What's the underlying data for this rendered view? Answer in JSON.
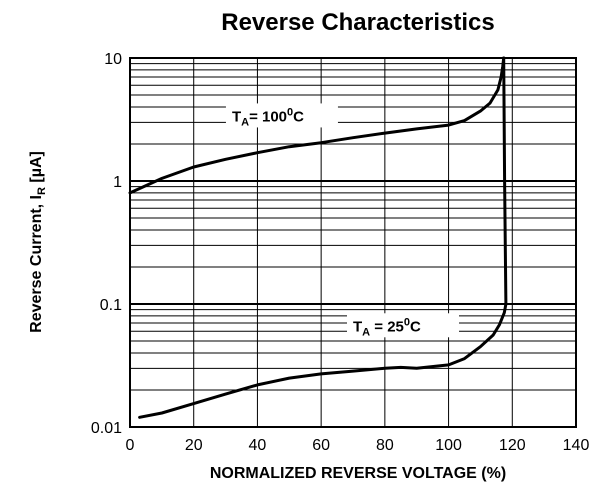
{
  "chart_data": {
    "type": "line",
    "title": "Reverse Characteristics",
    "xlabel": "NORMALIZED REVERSE VOLTAGE (%)",
    "ylabel": {
      "main": "Reverse Current, I",
      "sub": "R",
      "unit": " [µA]"
    },
    "xlim": [
      0,
      140
    ],
    "ylim": [
      0.01,
      10
    ],
    "yscale": "log",
    "grid": true,
    "x_ticks": [
      0,
      20,
      40,
      60,
      80,
      100,
      120,
      140
    ],
    "y_ticks": [
      {
        "value": 0.01,
        "label": "0.01"
      },
      {
        "value": 0.1,
        "label": "0.1"
      },
      {
        "value": 1,
        "label": "1"
      },
      {
        "value": 10,
        "label": "10"
      }
    ],
    "series": [
      {
        "points": [
          [
            0,
            0.8
          ],
          [
            10,
            1.05
          ],
          [
            20,
            1.3
          ],
          [
            30,
            1.5
          ],
          [
            40,
            1.7
          ],
          [
            50,
            1.9
          ],
          [
            60,
            2.05
          ],
          [
            70,
            2.25
          ],
          [
            80,
            2.45
          ],
          [
            90,
            2.65
          ],
          [
            100,
            2.85
          ],
          [
            105,
            3.1
          ],
          [
            110,
            3.7
          ],
          [
            113,
            4.3
          ],
          [
            115.5,
            5.5
          ],
          [
            116.5,
            7.0
          ],
          [
            117,
            8.5
          ],
          [
            117.3,
            10
          ]
        ],
        "annotation": {
          "main": "T",
          "sub": "A",
          "text": "= 100",
          "sup": "0",
          "tail": "C",
          "x": 32,
          "y": 3.05
        }
      },
      {
        "points": [
          [
            3,
            0.012
          ],
          [
            10,
            0.013
          ],
          [
            20,
            0.0155
          ],
          [
            30,
            0.0185
          ],
          [
            40,
            0.022
          ],
          [
            50,
            0.025
          ],
          [
            60,
            0.027
          ],
          [
            70,
            0.0285
          ],
          [
            80,
            0.03
          ],
          [
            85,
            0.0305
          ],
          [
            90,
            0.03
          ],
          [
            100,
            0.032
          ],
          [
            105,
            0.036
          ],
          [
            110,
            0.045
          ],
          [
            114,
            0.056
          ],
          [
            116,
            0.068
          ],
          [
            117.5,
            0.085
          ],
          [
            118,
            0.1
          ],
          [
            117.6,
            1
          ],
          [
            117.3,
            10
          ]
        ],
        "annotation": {
          "main": "T",
          "sub": "A",
          "text": " = 25",
          "sup": "0",
          "tail": "C",
          "x": 70,
          "y": 0.06
        }
      }
    ]
  }
}
